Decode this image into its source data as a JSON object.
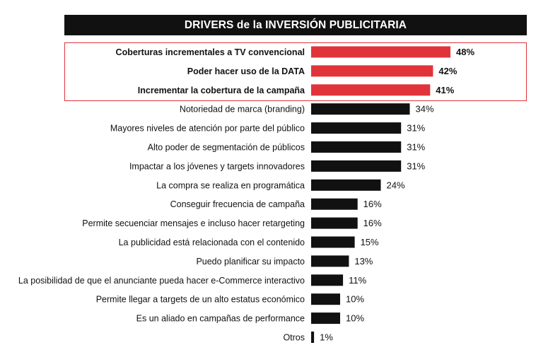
{
  "chart_data": {
    "type": "bar",
    "orientation": "horizontal",
    "title": "DRIVERS de la INVERSIÓN PUBLICITARIA",
    "unit": "%",
    "xlim": [
      0,
      48
    ],
    "grid": false,
    "legend": "none",
    "highlighted_count": 3,
    "colors": {
      "highlight": "#e0343a",
      "default": "#111111"
    },
    "categories": [
      "Coberturas incrementales a TV convencional",
      "Poder hacer uso de la DATA",
      "Incrementar la cobertura de la campaña",
      "Notoriedad de marca (branding)",
      "Mayores niveles de atención por parte del público",
      "Alto poder de segmentación de públicos",
      "Impactar a los jóvenes y targets innovadores",
      "La compra se realiza en programática",
      "Conseguir frecuencia de campaña",
      "Permite secuenciar mensajes e incluso hacer retargeting",
      "La publicidad está relacionada con el contenido",
      "Puedo planificar su impacto",
      "La posibilidad de que el anunciante pueda hacer e-Commerce interactivo",
      "Permite llegar a targets de un alto estatus económico",
      "Es un aliado en campañas de performance",
      "Otros"
    ],
    "values": [
      48,
      42,
      41,
      34,
      31,
      31,
      31,
      24,
      16,
      16,
      15,
      13,
      11,
      10,
      10,
      1
    ]
  }
}
